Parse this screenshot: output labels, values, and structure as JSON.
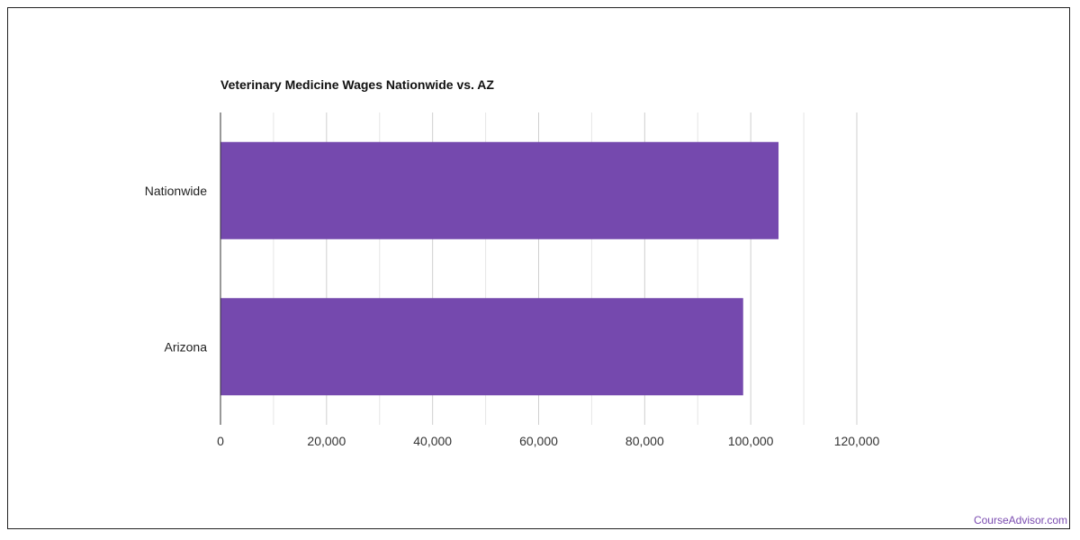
{
  "chart_data": {
    "type": "bar",
    "orientation": "horizontal",
    "title": "Veterinary Medicine Wages Nationwide vs. AZ",
    "categories": [
      "Nationwide",
      "Arizona"
    ],
    "values": [
      105240,
      98570
    ],
    "xlim": [
      0,
      120000
    ],
    "x_ticks": [
      0,
      20000,
      40000,
      60000,
      80000,
      100000,
      120000
    ],
    "x_tick_labels": [
      "0",
      "20,000",
      "40,000",
      "60,000",
      "80,000",
      "100,000",
      "120,000"
    ],
    "xlabel": "",
    "ylabel": "",
    "grid": true,
    "bar_color": "#7549ae"
  },
  "watermark": "CourseAdvisor.com"
}
